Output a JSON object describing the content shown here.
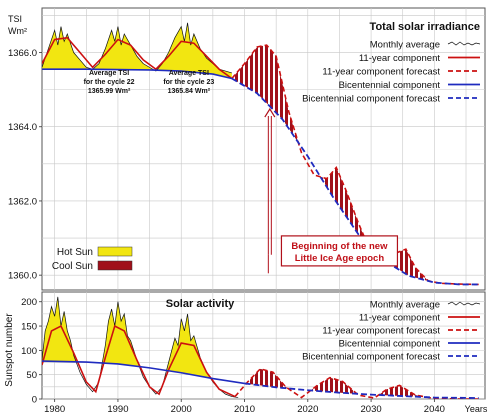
{
  "chart_data": [
    {
      "type": "line",
      "title": "Total solar irradiance",
      "ylabel": "TSI",
      "yunit": "Wm²",
      "ylim": [
        1359.6,
        1367.2
      ],
      "xlim": [
        1978,
        2048
      ],
      "yticks": [
        1360.0,
        1362.0,
        1364.0,
        1366.0
      ],
      "ytick_labels": [
        "1360.0",
        "1362.0",
        "1364.0",
        "1366.0"
      ],
      "grid": true,
      "legend_position": "top-right",
      "legend": [
        {
          "label": "Monthly average",
          "style": "thin-black",
          "color": "#111111"
        },
        {
          "label": "11-year component",
          "style": "solid",
          "color": "#cc1010"
        },
        {
          "label": "11-year component forecast",
          "style": "dashed",
          "color": "#cc1010"
        },
        {
          "label": "Bicentennial component",
          "style": "solid",
          "color": "#1f2bbf"
        },
        {
          "label": "Bicentennial component forecast",
          "style": "dashed",
          "color": "#1f2bbf"
        }
      ],
      "fill_legend": [
        {
          "label": "Hot Sun",
          "color": "#f2e611"
        },
        {
          "label": "Cool Sun",
          "color": "#a0101a"
        }
      ],
      "annotations": [
        {
          "lines": [
            "Average TSI",
            "for the cycle 22",
            "1365.99 Wm²"
          ],
          "x": 1988.6,
          "y": 1365.4
        },
        {
          "lines": [
            "Average TSI",
            "for the cycle 23",
            "1365.84 Wm²"
          ],
          "x": 2001.2,
          "y": 1365.4
        },
        {
          "lines": [
            "Beginning of the new",
            "Little Ice Age epoch"
          ],
          "x": 2025.0,
          "y": 1360.6
        }
      ],
      "arrow": {
        "x": 2014,
        "y_from": 1360.55,
        "y_to": 1364.45
      },
      "series": [
        {
          "name": "Bicentennial component",
          "color": "#1f2bbf",
          "x": [
            1978,
            1985,
            1990,
            1995,
            2000,
            2005,
            2008
          ],
          "values": [
            1365.55,
            1365.55,
            1365.54,
            1365.53,
            1365.5,
            1365.42,
            1365.3
          ]
        },
        {
          "name": "Bicentennial component forecast",
          "color": "#1f2bbf",
          "dashed": true,
          "x": [
            2008,
            2012,
            2016,
            2020,
            2024,
            2028,
            2032,
            2036,
            2040,
            2044,
            2047
          ],
          "values": [
            1365.3,
            1364.9,
            1364.2,
            1363.2,
            1362.1,
            1361.1,
            1360.4,
            1359.98,
            1359.8,
            1359.75,
            1359.75
          ]
        },
        {
          "name": "11-year component",
          "color": "#cc1010",
          "x": [
            1978,
            1980,
            1982,
            1984,
            1986,
            1988,
            1990,
            1992,
            1994,
            1996,
            1998,
            2000,
            2002,
            2004,
            2006,
            2008
          ],
          "values": [
            1365.7,
            1366.35,
            1366.4,
            1366.0,
            1365.6,
            1365.95,
            1366.35,
            1366.2,
            1365.8,
            1365.55,
            1365.9,
            1366.3,
            1366.25,
            1365.9,
            1365.55,
            1365.3
          ]
        },
        {
          "name": "11-year component forecast",
          "color": "#cc1010",
          "dashed": true,
          "x": [
            2008,
            2010,
            2012,
            2013.5,
            2015,
            2017,
            2019,
            2021,
            2023,
            2024.5,
            2026,
            2028,
            2030,
            2032,
            2034,
            2035.5,
            2037,
            2039,
            2041,
            2044,
            2047
          ],
          "values": [
            1365.3,
            1365.7,
            1366.15,
            1366.2,
            1365.9,
            1364.4,
            1363.3,
            1362.7,
            1362.6,
            1362.9,
            1362.3,
            1361.4,
            1360.6,
            1360.5,
            1360.6,
            1360.7,
            1360.2,
            1359.85,
            1359.78,
            1359.76,
            1359.75
          ]
        },
        {
          "name": "Monthly average",
          "color": "#111111",
          "x": [
            1978,
            1979,
            1980,
            1980.5,
            1981,
            1981.5,
            1982,
            1983,
            1984,
            1985,
            1986,
            1987,
            1988,
            1989,
            1989.5,
            1990,
            1990.5,
            1991,
            1992,
            1993,
            1994,
            1995,
            1996,
            1997,
            1998,
            1999,
            2000,
            2000.5,
            2001,
            2001.5,
            2002,
            2003,
            2004,
            2005,
            2006,
            2007,
            2008
          ],
          "values": [
            1365.6,
            1366.1,
            1366.6,
            1366.2,
            1366.7,
            1366.3,
            1366.5,
            1366.0,
            1365.8,
            1365.6,
            1365.55,
            1365.7,
            1366.1,
            1366.6,
            1366.3,
            1366.7,
            1366.2,
            1366.5,
            1366.2,
            1365.9,
            1365.7,
            1365.6,
            1365.5,
            1365.7,
            1366.0,
            1366.4,
            1366.7,
            1366.3,
            1366.8,
            1366.2,
            1366.5,
            1366.1,
            1365.85,
            1365.7,
            1365.55,
            1365.5,
            1365.45
          ]
        }
      ]
    },
    {
      "type": "line",
      "title": "Solar activity",
      "ylabel": "Sunspot number",
      "ylim": [
        0,
        220
      ],
      "xlim": [
        1978,
        2048
      ],
      "yticks": [
        0,
        50,
        100,
        150,
        200
      ],
      "ytick_labels": [
        "0",
        "50",
        "100",
        "150",
        "200"
      ],
      "xticks": [
        1980,
        1990,
        2000,
        2010,
        2020,
        2030,
        2040
      ],
      "xtick_labels": [
        "1980",
        "1990",
        "2000",
        "2010",
        "2020",
        "2030",
        "2040"
      ],
      "xlabel": "Years",
      "grid": true,
      "legend_position": "top-right",
      "legend": [
        {
          "label": "Monthly average",
          "style": "thin-black",
          "color": "#111111"
        },
        {
          "label": "11-year component",
          "style": "solid",
          "color": "#cc1010"
        },
        {
          "label": "11-year component forecast",
          "style": "dashed",
          "color": "#cc1010"
        },
        {
          "label": "Bicentennial component",
          "style": "solid",
          "color": "#1f2bbf"
        },
        {
          "label": "Bicentennial component forecast",
          "style": "dashed",
          "color": "#1f2bbf"
        }
      ],
      "series": [
        {
          "name": "Bicentennial component",
          "color": "#1f2bbf",
          "x": [
            1978,
            1985,
            1990,
            1995,
            2000,
            2005,
            2010
          ],
          "values": [
            78,
            76,
            72,
            64,
            54,
            42,
            32
          ]
        },
        {
          "name": "Bicentennial component forecast",
          "color": "#1f2bbf",
          "dashed": true,
          "x": [
            2010,
            2015,
            2020,
            2025,
            2030,
            2035,
            2040,
            2047
          ],
          "values": [
            32,
            24,
            18,
            13,
            9,
            6,
            3,
            2
          ]
        },
        {
          "name": "11-year component",
          "color": "#cc1010",
          "x": [
            1978,
            1979.5,
            1981,
            1983,
            1985,
            1986.5,
            1988,
            1989.5,
            1991,
            1993,
            1995,
            1996.5,
            1998,
            2000,
            2002,
            2004,
            2006,
            2008.5
          ],
          "values": [
            70,
            140,
            150,
            95,
            35,
            15,
            85,
            150,
            140,
            80,
            25,
            10,
            60,
            115,
            110,
            55,
            20,
            5
          ]
        },
        {
          "name": "11-year component forecast",
          "color": "#cc1010",
          "dashed": true,
          "x": [
            2008.5,
            2010.5,
            2012.5,
            2014.5,
            2016.5,
            2019,
            2021.5,
            2023.5,
            2025.5,
            2028,
            2030.5,
            2032.5,
            2034.5,
            2037,
            2040,
            2044,
            2047
          ],
          "values": [
            5,
            35,
            62,
            55,
            25,
            3,
            28,
            44,
            36,
            8,
            2,
            20,
            28,
            8,
            1,
            0,
            0
          ]
        },
        {
          "name": "Monthly average",
          "color": "#111111",
          "x": [
            1978,
            1978.5,
            1979,
            1979.5,
            1980,
            1980.5,
            1981,
            1981.5,
            1982,
            1982.5,
            1983,
            1984,
            1985,
            1986,
            1987,
            1988,
            1988.5,
            1989,
            1989.5,
            1990,
            1990.5,
            1991,
            1991.5,
            1992,
            1993,
            1994,
            1995,
            1996,
            1997,
            1998,
            1998.5,
            1999,
            1999.5,
            2000,
            2000.5,
            2001,
            2001.5,
            2002,
            2003,
            2004,
            2005,
            2006,
            2007,
            2008,
            2009
          ],
          "values": [
            80,
            140,
            160,
            190,
            170,
            210,
            150,
            180,
            140,
            120,
            90,
            55,
            30,
            15,
            35,
            110,
            160,
            185,
            150,
            200,
            160,
            175,
            130,
            120,
            80,
            45,
            25,
            10,
            25,
            75,
            100,
            125,
            110,
            165,
            140,
            175,
            120,
            130,
            85,
            55,
            35,
            20,
            10,
            5,
            3
          ]
        }
      ]
    }
  ]
}
